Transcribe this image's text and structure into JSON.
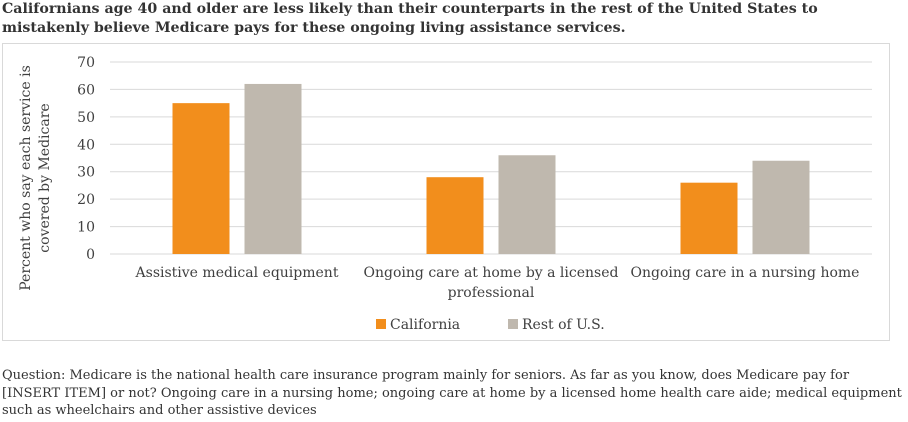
{
  "title": "Californians age 40 and older are less likely than their counterparts in the rest of the United States to mistakenly believe Medicare pays for these ongoing living assistance services.",
  "note": "Question: Medicare is the national health care insurance program mainly for seniors. As far as you know, does Medicare pay for [INSERT ITEM] or not? Ongoing care in a nursing home; ongoing care at home by a licensed home health care aide; medical equipment such as wheelchairs and other assistive devices",
  "colors": {
    "California": "#f28e1c",
    "Rest of U.S.": "#bfb8ae",
    "gridline": "#d9d9d9"
  },
  "chart_data": {
    "type": "bar",
    "categories": [
      [
        "Assistive medical equipment"
      ],
      [
        "Ongoing care at home by a licensed",
        "professional"
      ],
      [
        "Ongoing care in a nursing home"
      ]
    ],
    "series": [
      {
        "name": "California",
        "values": [
          55,
          28,
          26
        ]
      },
      {
        "name": "Rest of U.S.",
        "values": [
          62,
          36,
          34
        ]
      }
    ],
    "ylabel": [
      "Percent  who say each service is",
      "covered by Medicare"
    ],
    "ylim": [
      0,
      70
    ],
    "yticks": [
      "0",
      "10",
      "20",
      "30",
      "40",
      "50",
      "60",
      "70"
    ],
    "grid": true,
    "legend_position": "bottom"
  }
}
